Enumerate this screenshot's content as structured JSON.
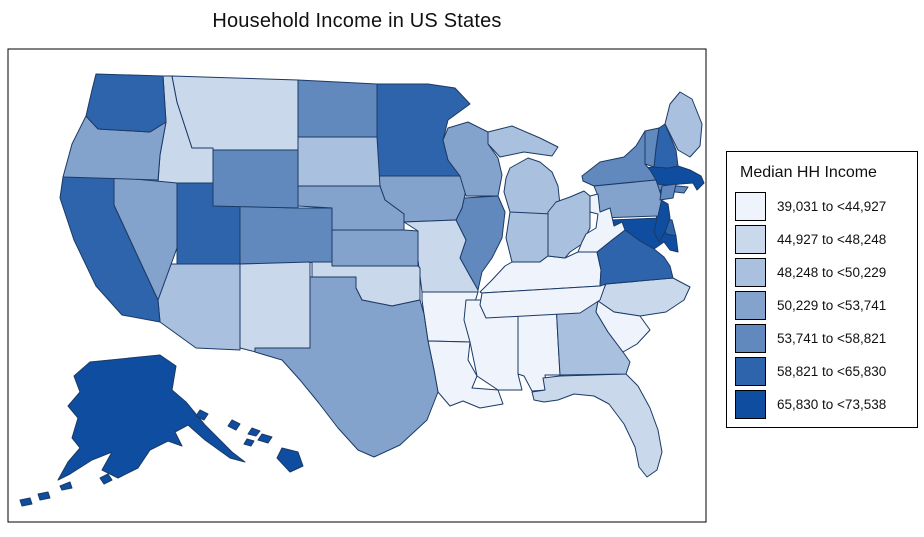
{
  "title": "Household Income in US States",
  "legend": {
    "title": "Median HH Income",
    "bins": [
      {
        "label": "39,031 to <44,927",
        "color": "#EFF3FB"
      },
      {
        "label": "44,927 to <48,248",
        "color": "#CAD8EC"
      },
      {
        "label": "48,248 to <50,229",
        "color": "#A9C0DE"
      },
      {
        "label": "50,229 to <53,741",
        "color": "#84A3CC"
      },
      {
        "label": "53,741 to <58,821",
        "color": "#6189BE"
      },
      {
        "label": "58,821 to <65,830",
        "color": "#2E64AB"
      },
      {
        "label": "65,830 to <73,538",
        "color": "#0E4DA0"
      }
    ]
  },
  "map": {
    "state_border_color": "#1B3A66",
    "frame_border_color": "#000000",
    "background_color": "#FFFFFF"
  },
  "chart_data": {
    "type": "choropleth",
    "region": "United States (50 states)",
    "title": "Household Income in US States",
    "legend_title": "Median HH Income",
    "legend_position": "right",
    "classes": [
      "39,031 to <44,927",
      "44,927 to <48,248",
      "48,248 to <50,229",
      "50,229 to <53,741",
      "53,741 to <58,821",
      "58,821 to <65,830",
      "65,830 to <73,538"
    ],
    "colors": [
      "#EFF3FB",
      "#CAD8EC",
      "#A9C0DE",
      "#84A3CC",
      "#6189BE",
      "#2E64AB",
      "#0E4DA0"
    ],
    "states": [
      {
        "state": "Alabama",
        "abbr": "AL",
        "class_index": 0,
        "class_label": "39,031 to <44,927"
      },
      {
        "state": "Alaska",
        "abbr": "AK",
        "class_index": 6,
        "class_label": "65,830 to <73,538"
      },
      {
        "state": "Arizona",
        "abbr": "AZ",
        "class_index": 2,
        "class_label": "48,248 to <50,229"
      },
      {
        "state": "Arkansas",
        "abbr": "AR",
        "class_index": 0,
        "class_label": "39,031 to <44,927"
      },
      {
        "state": "California",
        "abbr": "CA",
        "class_index": 5,
        "class_label": "58,821 to <65,830"
      },
      {
        "state": "Colorado",
        "abbr": "CO",
        "class_index": 4,
        "class_label": "53,741 to <58,821"
      },
      {
        "state": "Connecticut",
        "abbr": "CT",
        "class_index": 6,
        "class_label": "65,830 to <73,538"
      },
      {
        "state": "Delaware",
        "abbr": "DE",
        "class_index": 5,
        "class_label": "58,821 to <65,830"
      },
      {
        "state": "Florida",
        "abbr": "FL",
        "class_index": 1,
        "class_label": "44,927 to <48,248"
      },
      {
        "state": "Georgia",
        "abbr": "GA",
        "class_index": 2,
        "class_label": "48,248 to <50,229"
      },
      {
        "state": "Hawaii",
        "abbr": "HI",
        "class_index": 6,
        "class_label": "65,830 to <73,538"
      },
      {
        "state": "Idaho",
        "abbr": "ID",
        "class_index": 1,
        "class_label": "44,927 to <48,248"
      },
      {
        "state": "Illinois",
        "abbr": "IL",
        "class_index": 4,
        "class_label": "53,741 to <58,821"
      },
      {
        "state": "Indiana",
        "abbr": "IN",
        "class_index": 2,
        "class_label": "48,248 to <50,229"
      },
      {
        "state": "Iowa",
        "abbr": "IA",
        "class_index": 3,
        "class_label": "50,229 to <53,741"
      },
      {
        "state": "Kansas",
        "abbr": "KS",
        "class_index": 3,
        "class_label": "50,229 to <53,741"
      },
      {
        "state": "Kentucky",
        "abbr": "KY",
        "class_index": 0,
        "class_label": "39,031 to <44,927"
      },
      {
        "state": "Louisiana",
        "abbr": "LA",
        "class_index": 0,
        "class_label": "39,031 to <44,927"
      },
      {
        "state": "Maine",
        "abbr": "ME",
        "class_index": 2,
        "class_label": "48,248 to <50,229"
      },
      {
        "state": "Maryland",
        "abbr": "MD",
        "class_index": 6,
        "class_label": "65,830 to <73,538"
      },
      {
        "state": "Massachusetts",
        "abbr": "MA",
        "class_index": 6,
        "class_label": "65,830 to <73,538"
      },
      {
        "state": "Michigan",
        "abbr": "MI",
        "class_index": 2,
        "class_label": "48,248 to <50,229"
      },
      {
        "state": "Minnesota",
        "abbr": "MN",
        "class_index": 5,
        "class_label": "58,821 to <65,830"
      },
      {
        "state": "Mississippi",
        "abbr": "MS",
        "class_index": 0,
        "class_label": "39,031 to <44,927"
      },
      {
        "state": "Missouri",
        "abbr": "MO",
        "class_index": 1,
        "class_label": "44,927 to <48,248"
      },
      {
        "state": "Montana",
        "abbr": "MT",
        "class_index": 1,
        "class_label": "44,927 to <48,248"
      },
      {
        "state": "Nebraska",
        "abbr": "NE",
        "class_index": 3,
        "class_label": "50,229 to <53,741"
      },
      {
        "state": "Nevada",
        "abbr": "NV",
        "class_index": 3,
        "class_label": "50,229 to <53,741"
      },
      {
        "state": "New Hampshire",
        "abbr": "NH",
        "class_index": 5,
        "class_label": "58,821 to <65,830"
      },
      {
        "state": "New Jersey",
        "abbr": "NJ",
        "class_index": 6,
        "class_label": "65,830 to <73,538"
      },
      {
        "state": "New Mexico",
        "abbr": "NM",
        "class_index": 1,
        "class_label": "44,927 to <48,248"
      },
      {
        "state": "New York",
        "abbr": "NY",
        "class_index": 4,
        "class_label": "53,741 to <58,821"
      },
      {
        "state": "North Carolina",
        "abbr": "NC",
        "class_index": 1,
        "class_label": "44,927 to <48,248"
      },
      {
        "state": "North Dakota",
        "abbr": "ND",
        "class_index": 4,
        "class_label": "53,741 to <58,821"
      },
      {
        "state": "Ohio",
        "abbr": "OH",
        "class_index": 2,
        "class_label": "48,248 to <50,229"
      },
      {
        "state": "Oklahoma",
        "abbr": "OK",
        "class_index": 1,
        "class_label": "44,927 to <48,248"
      },
      {
        "state": "Oregon",
        "abbr": "OR",
        "class_index": 3,
        "class_label": "50,229 to <53,741"
      },
      {
        "state": "Pennsylvania",
        "abbr": "PA",
        "class_index": 3,
        "class_label": "50,229 to <53,741"
      },
      {
        "state": "Rhode Island",
        "abbr": "RI",
        "class_index": 4,
        "class_label": "53,741 to <58,821"
      },
      {
        "state": "South Carolina",
        "abbr": "SC",
        "class_index": 0,
        "class_label": "39,031 to <44,927"
      },
      {
        "state": "South Dakota",
        "abbr": "SD",
        "class_index": 2,
        "class_label": "48,248 to <50,229"
      },
      {
        "state": "Tennessee",
        "abbr": "TN",
        "class_index": 0,
        "class_label": "39,031 to <44,927"
      },
      {
        "state": "Texas",
        "abbr": "TX",
        "class_index": 3,
        "class_label": "50,229 to <53,741"
      },
      {
        "state": "Utah",
        "abbr": "UT",
        "class_index": 5,
        "class_label": "58,821 to <65,830"
      },
      {
        "state": "Vermont",
        "abbr": "VT",
        "class_index": 4,
        "class_label": "53,741 to <58,821"
      },
      {
        "state": "Virginia",
        "abbr": "VA",
        "class_index": 5,
        "class_label": "58,821 to <65,830"
      },
      {
        "state": "Washington",
        "abbr": "WA",
        "class_index": 5,
        "class_label": "58,821 to <65,830"
      },
      {
        "state": "West Virginia",
        "abbr": "WV",
        "class_index": 0,
        "class_label": "39,031 to <44,927"
      },
      {
        "state": "Wisconsin",
        "abbr": "WI",
        "class_index": 3,
        "class_label": "50,229 to <53,741"
      },
      {
        "state": "Wyoming",
        "abbr": "WY",
        "class_index": 4,
        "class_label": "53,741 to <58,821"
      }
    ]
  }
}
